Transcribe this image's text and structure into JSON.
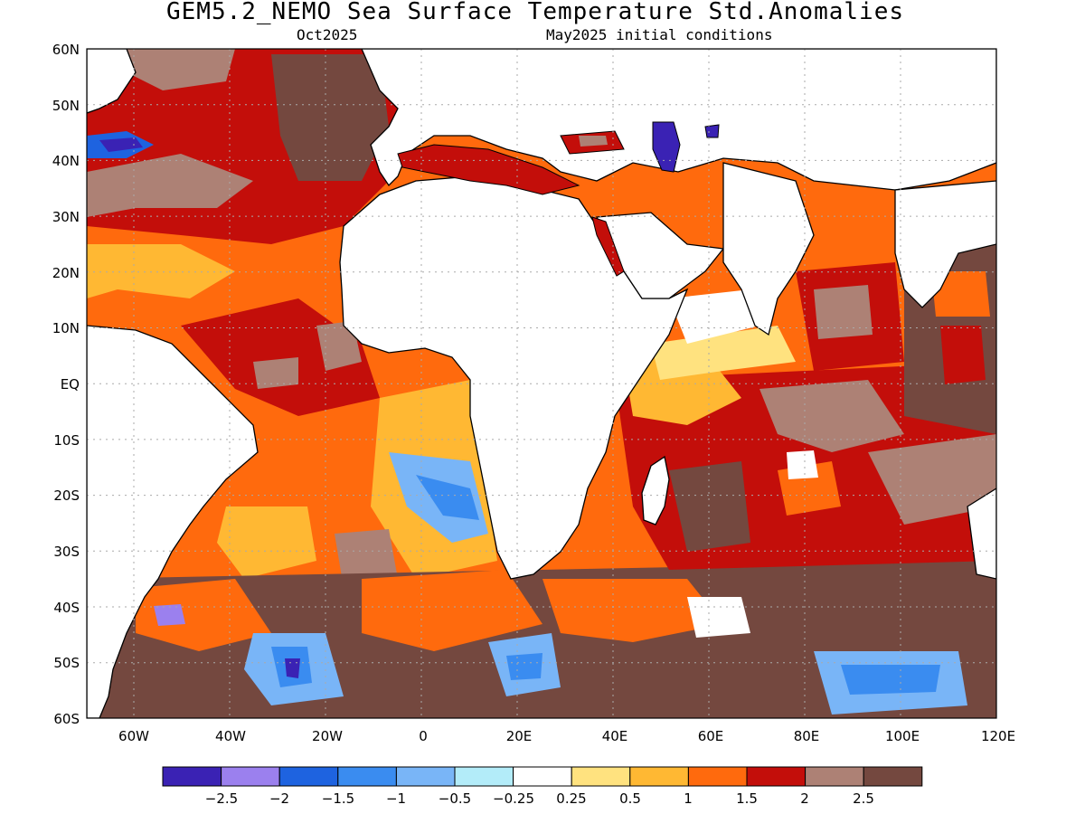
{
  "title": "GEM5.2_NEMO Sea Surface Temperature Std.Anomalies",
  "subtitle_left": "Oct2025",
  "subtitle_right": "May2025 initial conditions",
  "axes": {
    "lon_labels": [
      "60W",
      "40W",
      "20W",
      "0",
      "20E",
      "40E",
      "60E",
      "80E",
      "100E",
      "120E"
    ],
    "lat_labels": [
      "60N",
      "50N",
      "40N",
      "30N",
      "20N",
      "10N",
      "EQ",
      "10S",
      "20S",
      "30S",
      "40S",
      "50S",
      "60S"
    ]
  },
  "colorbar": {
    "colors": [
      "#3a22b4",
      "#9b80ee",
      "#1e63e0",
      "#3a8cf0",
      "#79b5f7",
      "#b3ecf9",
      "#ffffff",
      "#ffe27f",
      "#ffb833",
      "#ff6a0d",
      "#c30e0a",
      "#ad8175",
      "#74483f"
    ],
    "tick_labels": [
      "−2.5",
      "−2",
      "−1.5",
      "−1",
      "−0.5",
      "−0.25",
      "0.25",
      "0.5",
      "1",
      "1.5",
      "2",
      "2.5"
    ]
  }
}
